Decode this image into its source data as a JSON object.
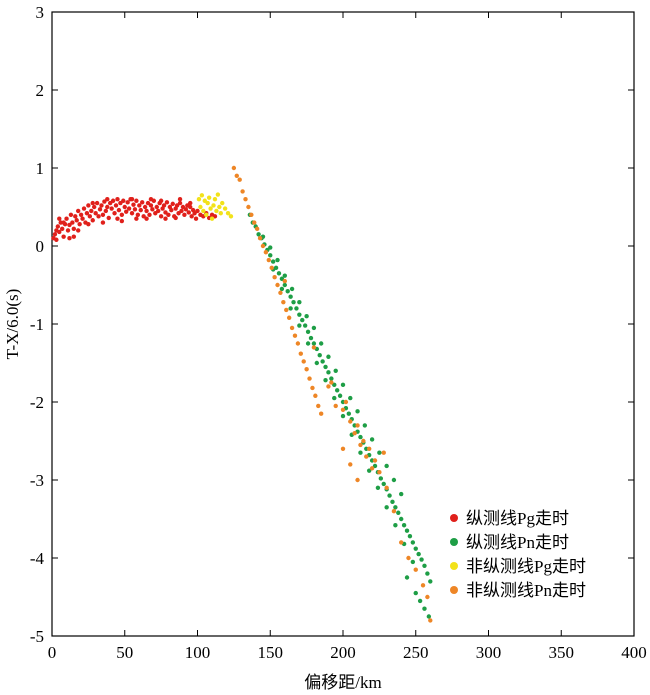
{
  "chart_data": {
    "type": "scatter",
    "xlabel": "偏移距/km",
    "ylabel": "T-X/6.0(s)",
    "xlim": [
      0,
      400
    ],
    "ylim": [
      -5,
      3
    ],
    "xticks": [
      0,
      50,
      100,
      150,
      200,
      250,
      300,
      350,
      400
    ],
    "yticks": [
      3,
      2,
      1,
      0,
      -1,
      -2,
      -3,
      -4,
      -5
    ],
    "grid": false,
    "legend_position": "bottom-right",
    "series": [
      {
        "name": "纵测线Pg走时",
        "color": "#e0201b",
        "points": [
          [
            1,
            0.1
          ],
          [
            2,
            0.15
          ],
          [
            3,
            0.2
          ],
          [
            3,
            0.08
          ],
          [
            4,
            0.25
          ],
          [
            5,
            0.18
          ],
          [
            6,
            0.3
          ],
          [
            7,
            0.22
          ],
          [
            8,
            0.12
          ],
          [
            9,
            0.28
          ],
          [
            10,
            0.35
          ],
          [
            11,
            0.2
          ],
          [
            12,
            0.27
          ],
          [
            13,
            0.4
          ],
          [
            14,
            0.3
          ],
          [
            15,
            0.22
          ],
          [
            16,
            0.38
          ],
          [
            17,
            0.33
          ],
          [
            18,
            0.45
          ],
          [
            19,
            0.28
          ],
          [
            20,
            0.4
          ],
          [
            21,
            0.35
          ],
          [
            22,
            0.48
          ],
          [
            23,
            0.3
          ],
          [
            24,
            0.42
          ],
          [
            25,
            0.52
          ],
          [
            26,
            0.38
          ],
          [
            27,
            0.45
          ],
          [
            28,
            0.33
          ],
          [
            29,
            0.5
          ],
          [
            30,
            0.42
          ],
          [
            31,
            0.55
          ],
          [
            32,
            0.38
          ],
          [
            33,
            0.47
          ],
          [
            34,
            0.52
          ],
          [
            35,
            0.4
          ],
          [
            36,
            0.57
          ],
          [
            37,
            0.45
          ],
          [
            38,
            0.5
          ],
          [
            39,
            0.36
          ],
          [
            40,
            0.55
          ],
          [
            41,
            0.48
          ],
          [
            42,
            0.58
          ],
          [
            43,
            0.42
          ],
          [
            44,
            0.52
          ],
          [
            45,
            0.6
          ],
          [
            46,
            0.46
          ],
          [
            47,
            0.55
          ],
          [
            48,
            0.4
          ],
          [
            49,
            0.58
          ],
          [
            50,
            0.5
          ],
          [
            51,
            0.44
          ],
          [
            52,
            0.56
          ],
          [
            53,
            0.48
          ],
          [
            54,
            0.6
          ],
          [
            55,
            0.42
          ],
          [
            56,
            0.53
          ],
          [
            57,
            0.47
          ],
          [
            58,
            0.58
          ],
          [
            59,
            0.4
          ],
          [
            60,
            0.52
          ],
          [
            61,
            0.46
          ],
          [
            62,
            0.56
          ],
          [
            63,
            0.38
          ],
          [
            64,
            0.5
          ],
          [
            65,
            0.45
          ],
          [
            66,
            0.55
          ],
          [
            67,
            0.4
          ],
          [
            68,
            0.52
          ],
          [
            69,
            0.47
          ],
          [
            70,
            0.58
          ],
          [
            71,
            0.42
          ],
          [
            72,
            0.5
          ],
          [
            73,
            0.45
          ],
          [
            74,
            0.55
          ],
          [
            75,
            0.38
          ],
          [
            76,
            0.48
          ],
          [
            77,
            0.52
          ],
          [
            78,
            0.43
          ],
          [
            79,
            0.56
          ],
          [
            80,
            0.4
          ],
          [
            81,
            0.5
          ],
          [
            82,
            0.46
          ],
          [
            83,
            0.54
          ],
          [
            84,
            0.38
          ],
          [
            85,
            0.48
          ],
          [
            86,
            0.52
          ],
          [
            87,
            0.42
          ],
          [
            88,
            0.55
          ],
          [
            89,
            0.45
          ],
          [
            90,
            0.5
          ],
          [
            91,
            0.4
          ],
          [
            92,
            0.47
          ],
          [
            93,
            0.52
          ],
          [
            94,
            0.43
          ],
          [
            95,
            0.5
          ],
          [
            96,
            0.38
          ],
          [
            97,
            0.46
          ],
          [
            98,
            0.42
          ],
          [
            99,
            0.35
          ],
          [
            100,
            0.45
          ],
          [
            102,
            0.4
          ],
          [
            104,
            0.38
          ],
          [
            106,
            0.42
          ],
          [
            108,
            0.36
          ],
          [
            110,
            0.4
          ],
          [
            112,
            0.38
          ],
          [
            5,
            0.35
          ],
          [
            15,
            0.12
          ],
          [
            25,
            0.28
          ],
          [
            35,
            0.3
          ],
          [
            45,
            0.35
          ],
          [
            55,
            0.6
          ],
          [
            65,
            0.35
          ],
          [
            75,
            0.58
          ],
          [
            85,
            0.36
          ],
          [
            95,
            0.55
          ],
          [
            8,
            0.3
          ],
          [
            18,
            0.2
          ],
          [
            28,
            0.55
          ],
          [
            38,
            0.6
          ],
          [
            48,
            0.32
          ],
          [
            58,
            0.35
          ],
          [
            68,
            0.6
          ],
          [
            78,
            0.35
          ],
          [
            88,
            0.6
          ],
          [
            12,
            0.1
          ]
        ]
      },
      {
        "name": "纵测线Pn走时",
        "color": "#1e9e46",
        "points": [
          [
            136,
            0.4
          ],
          [
            138,
            0.3
          ],
          [
            140,
            0.25
          ],
          [
            142,
            0.15
          ],
          [
            144,
            0.1
          ],
          [
            146,
            0.02
          ],
          [
            148,
            -0.05
          ],
          [
            150,
            -0.12
          ],
          [
            152,
            -0.2
          ],
          [
            154,
            -0.28
          ],
          [
            156,
            -0.35
          ],
          [
            158,
            -0.42
          ],
          [
            160,
            -0.5
          ],
          [
            162,
            -0.58
          ],
          [
            164,
            -0.65
          ],
          [
            166,
            -0.72
          ],
          [
            168,
            -0.8
          ],
          [
            170,
            -0.88
          ],
          [
            172,
            -0.95
          ],
          [
            174,
            -1.02
          ],
          [
            176,
            -1.1
          ],
          [
            178,
            -1.18
          ],
          [
            180,
            -1.25
          ],
          [
            182,
            -1.32
          ],
          [
            184,
            -1.4
          ],
          [
            186,
            -1.48
          ],
          [
            188,
            -1.55
          ],
          [
            190,
            -1.62
          ],
          [
            192,
            -1.7
          ],
          [
            194,
            -1.78
          ],
          [
            196,
            -1.85
          ],
          [
            198,
            -1.92
          ],
          [
            200,
            -2.0
          ],
          [
            202,
            -2.08
          ],
          [
            204,
            -2.15
          ],
          [
            206,
            -2.22
          ],
          [
            208,
            -2.3
          ],
          [
            210,
            -2.38
          ],
          [
            212,
            -2.45
          ],
          [
            214,
            -2.52
          ],
          [
            216,
            -2.6
          ],
          [
            218,
            -2.68
          ],
          [
            220,
            -2.75
          ],
          [
            222,
            -2.82
          ],
          [
            224,
            -2.9
          ],
          [
            226,
            -2.98
          ],
          [
            228,
            -3.05
          ],
          [
            230,
            -3.12
          ],
          [
            232,
            -3.2
          ],
          [
            234,
            -3.28
          ],
          [
            236,
            -3.35
          ],
          [
            238,
            -3.42
          ],
          [
            240,
            -3.5
          ],
          [
            242,
            -3.58
          ],
          [
            244,
            -3.65
          ],
          [
            246,
            -3.72
          ],
          [
            248,
            -3.8
          ],
          [
            250,
            -3.88
          ],
          [
            252,
            -3.95
          ],
          [
            254,
            -4.02
          ],
          [
            256,
            -4.1
          ],
          [
            258,
            -4.2
          ],
          [
            260,
            -4.3
          ],
          [
            250,
            -4.45
          ],
          [
            253,
            -4.55
          ],
          [
            256,
            -4.65
          ],
          [
            259,
            -4.75
          ],
          [
            145,
            0.12
          ],
          [
            150,
            -0.02
          ],
          [
            155,
            -0.18
          ],
          [
            160,
            -0.38
          ],
          [
            165,
            -0.55
          ],
          [
            170,
            -0.72
          ],
          [
            175,
            -0.9
          ],
          [
            180,
            -1.05
          ],
          [
            185,
            -1.25
          ],
          [
            190,
            -1.42
          ],
          [
            195,
            -1.6
          ],
          [
            200,
            -1.78
          ],
          [
            205,
            -1.95
          ],
          [
            210,
            -2.12
          ],
          [
            215,
            -2.3
          ],
          [
            220,
            -2.48
          ],
          [
            225,
            -2.65
          ],
          [
            230,
            -2.82
          ],
          [
            235,
            -3.0
          ],
          [
            240,
            -3.18
          ],
          [
            152,
            -0.3
          ],
          [
            158,
            -0.55
          ],
          [
            164,
            -0.8
          ],
          [
            170,
            -1.02
          ],
          [
            176,
            -1.25
          ],
          [
            182,
            -1.5
          ],
          [
            188,
            -1.72
          ],
          [
            194,
            -1.95
          ],
          [
            200,
            -2.18
          ],
          [
            206,
            -2.42
          ],
          [
            212,
            -2.65
          ],
          [
            218,
            -2.88
          ],
          [
            224,
            -3.1
          ],
          [
            230,
            -3.35
          ],
          [
            236,
            -3.58
          ],
          [
            242,
            -3.82
          ],
          [
            248,
            -4.05
          ],
          [
            244,
            -4.25
          ]
        ]
      },
      {
        "name": "非纵测线Pg走时",
        "color": "#f2e21a",
        "points": [
          [
            101,
            0.6
          ],
          [
            102,
            0.5
          ],
          [
            103,
            0.65
          ],
          [
            104,
            0.45
          ],
          [
            105,
            0.58
          ],
          [
            106,
            0.4
          ],
          [
            107,
            0.55
          ],
          [
            108,
            0.62
          ],
          [
            109,
            0.48
          ],
          [
            110,
            0.35
          ],
          [
            111,
            0.52
          ],
          [
            112,
            0.6
          ],
          [
            113,
            0.45
          ],
          [
            114,
            0.66
          ],
          [
            115,
            0.5
          ],
          [
            116,
            0.42
          ],
          [
            117,
            0.55
          ],
          [
            119,
            0.48
          ],
          [
            121,
            0.42
          ],
          [
            123,
            0.38
          ]
        ]
      },
      {
        "name": "非纵测线Pn走时",
        "color": "#ee8626",
        "points": [
          [
            125,
            1.0
          ],
          [
            127,
            0.9
          ],
          [
            129,
            0.85
          ],
          [
            131,
            0.7
          ],
          [
            133,
            0.6
          ],
          [
            135,
            0.5
          ],
          [
            137,
            0.4
          ],
          [
            139,
            0.3
          ],
          [
            141,
            0.22
          ],
          [
            143,
            0.1
          ],
          [
            145,
            0.0
          ],
          [
            147,
            -0.08
          ],
          [
            149,
            -0.18
          ],
          [
            151,
            -0.28
          ],
          [
            153,
            -0.4
          ],
          [
            155,
            -0.5
          ],
          [
            157,
            -0.6
          ],
          [
            159,
            -0.72
          ],
          [
            161,
            -0.82
          ],
          [
            163,
            -0.92
          ],
          [
            165,
            -1.05
          ],
          [
            167,
            -1.15
          ],
          [
            169,
            -1.25
          ],
          [
            171,
            -1.38
          ],
          [
            173,
            -1.48
          ],
          [
            175,
            -1.58
          ],
          [
            177,
            -1.7
          ],
          [
            179,
            -1.82
          ],
          [
            181,
            -1.92
          ],
          [
            183,
            -2.05
          ],
          [
            185,
            -2.15
          ],
          [
            190,
            -1.8
          ],
          [
            195,
            -2.05
          ],
          [
            200,
            -2.1
          ],
          [
            202,
            -2.0
          ],
          [
            205,
            -2.25
          ],
          [
            208,
            -2.4
          ],
          [
            210,
            -2.3
          ],
          [
            212,
            -2.55
          ],
          [
            214,
            -2.5
          ],
          [
            216,
            -2.7
          ],
          [
            218,
            -2.6
          ],
          [
            220,
            -2.85
          ],
          [
            222,
            -2.75
          ],
          [
            225,
            -2.9
          ],
          [
            228,
            -2.65
          ],
          [
            230,
            -3.1
          ],
          [
            235,
            -3.4
          ],
          [
            240,
            -3.8
          ],
          [
            245,
            -4.0
          ],
          [
            250,
            -4.15
          ],
          [
            255,
            -4.35
          ],
          [
            258,
            -4.5
          ],
          [
            260,
            -4.8
          ],
          [
            200,
            -2.6
          ],
          [
            205,
            -2.8
          ],
          [
            210,
            -3.0
          ],
          [
            160,
            -0.45
          ],
          [
            180,
            -1.3
          ],
          [
            192,
            -1.75
          ]
        ]
      }
    ]
  }
}
